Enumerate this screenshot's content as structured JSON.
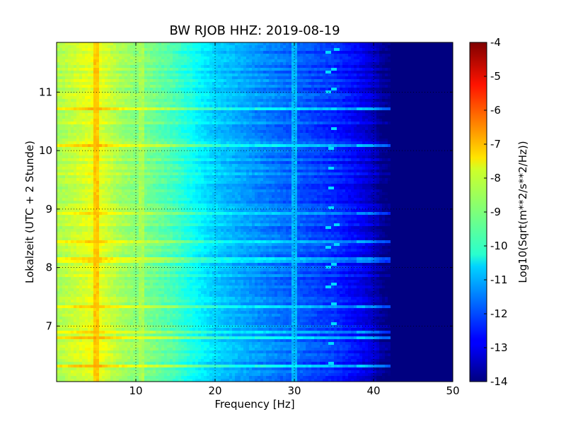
{
  "chart_data": {
    "type": "heatmap",
    "title": "BW RJOB HHZ: 2019-08-19",
    "xlabel": "Frequency [Hz]",
    "ylabel": "Lokalzeit (UTC + 2 Stunde)",
    "xlim": [
      0,
      50
    ],
    "ylim": [
      11.85,
      6.05
    ],
    "xticks": [
      "10",
      "20",
      "30",
      "40",
      "50"
    ],
    "yticks": [
      "7",
      "8",
      "9",
      "10",
      "11"
    ],
    "grid": true,
    "colormap": "jet",
    "colorbar": {
      "label": "Log10(Sqrt(m**2/s**2/Hz))",
      "range": [
        -14,
        -4
      ],
      "ticks": [
        "-4",
        "-5",
        "-6",
        "-7",
        "-8",
        "-9",
        "-10",
        "-11",
        "-12",
        "-13",
        "-14"
      ]
    },
    "profile": {
      "frequency_hz": [
        0,
        2,
        5,
        8,
        10,
        12,
        15,
        18,
        20,
        25,
        30,
        35,
        38,
        40,
        41,
        42,
        50
      ],
      "log_amplitude": [
        -8.6,
        -8.3,
        -7.9,
        -8.6,
        -8.9,
        -9.1,
        -9.6,
        -10.3,
        -10.7,
        -11.3,
        -11.8,
        -12.3,
        -12.8,
        -13.3,
        -13.8,
        -14,
        -14
      ]
    },
    "features": [
      {
        "kind": "line",
        "frequency_hz": 5,
        "log_amplitude": -7.2
      },
      {
        "kind": "line",
        "frequency_hz": 10.6,
        "log_amplitude": -8.6
      },
      {
        "kind": "line",
        "frequency_hz": 30,
        "log_amplitude": -11.0
      },
      {
        "kind": "chirp",
        "frequency_hz": 34.3,
        "log_amplitude": -10.6
      }
    ]
  }
}
